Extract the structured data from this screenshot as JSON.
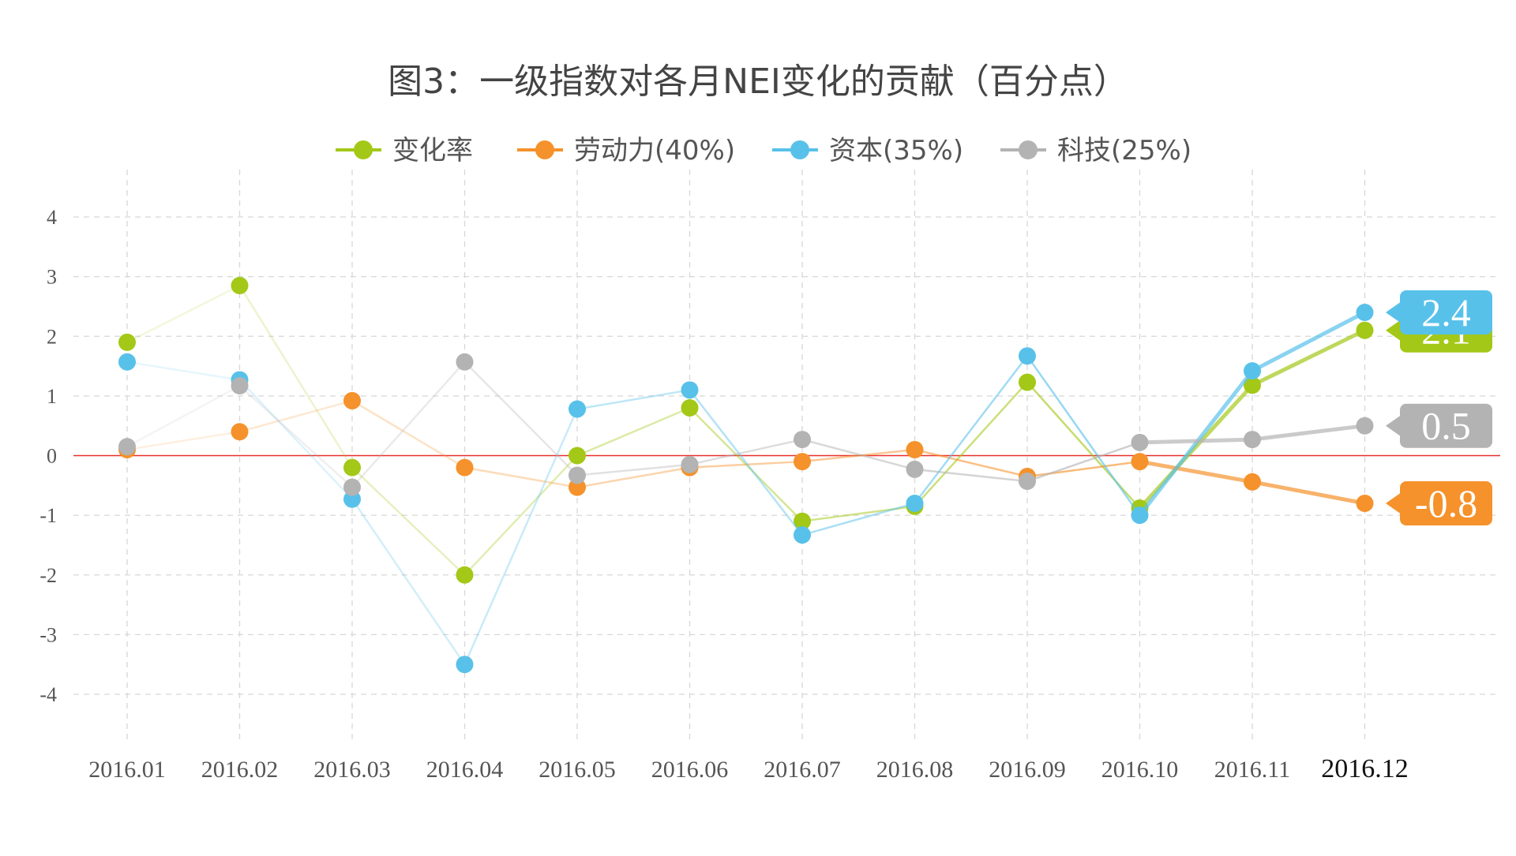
{
  "chart_data": {
    "type": "line",
    "title": "图3：一级指数对各月NEI变化的贡献（百分点）",
    "xlabel": "",
    "ylabel": "",
    "categories": [
      "2016.01",
      "2016.02",
      "2016.03",
      "2016.04",
      "2016.05",
      "2016.06",
      "2016.07",
      "2016.08",
      "2016.09",
      "2016.10",
      "2016.11",
      "2016.12"
    ],
    "ylim": [
      -4,
      4
    ],
    "yticks": [
      "4",
      "3",
      "2",
      "1",
      "0",
      "-1",
      "-2",
      "-3",
      "-4"
    ],
    "ytick_values": [
      4,
      3,
      2,
      1,
      0,
      -1,
      -2,
      -3,
      -4
    ],
    "grid": true,
    "legend_position": "top-center",
    "series": [
      {
        "name": "变化率",
        "color": "#a3c817",
        "values": [
          1.9,
          2.85,
          -0.2,
          -2.0,
          0.0,
          0.8,
          -1.1,
          -0.85,
          1.23,
          -0.88,
          1.18,
          2.1
        ],
        "callout": "2.1"
      },
      {
        "name": "劳动力(40%)",
        "color": "#f5922b",
        "values": [
          0.1,
          0.4,
          0.92,
          -0.2,
          -0.53,
          -0.2,
          -0.1,
          0.1,
          -0.35,
          -0.1,
          -0.44,
          -0.8
        ],
        "callout": "-0.8"
      },
      {
        "name": "资本(35%)",
        "color": "#58c1ea",
        "values": [
          1.57,
          1.27,
          -0.73,
          -3.5,
          0.78,
          1.1,
          -1.33,
          -0.8,
          1.67,
          -1.0,
          1.42,
          2.4
        ],
        "callout": "2.4"
      },
      {
        "name": "科技(25%)",
        "color": "#b3b3b3",
        "values": [
          0.15,
          1.17,
          -0.53,
          1.57,
          -0.33,
          -0.15,
          0.27,
          -0.23,
          -0.43,
          0.22,
          0.27,
          0.5
        ],
        "callout": "0.5"
      }
    ],
    "zero_line_color": "#e8302a"
  }
}
